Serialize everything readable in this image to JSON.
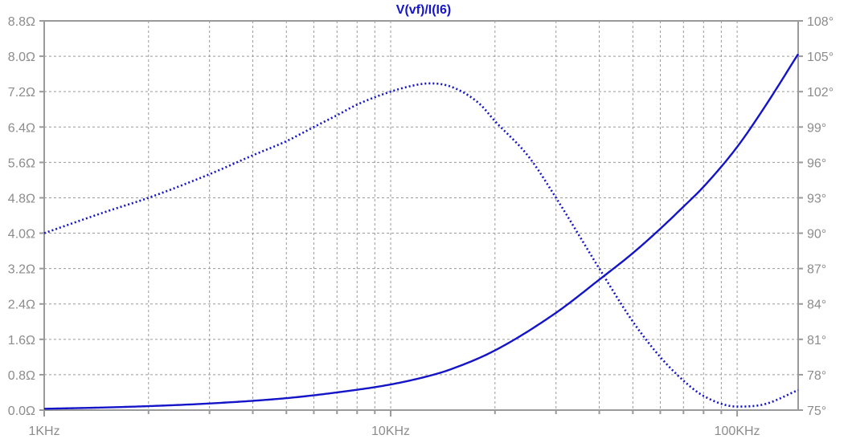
{
  "chart_data": {
    "type": "line",
    "title": "V(vf)/I(I6)",
    "x_scale": "log",
    "xlim": [
      1000,
      150000
    ],
    "x_ticks": [
      {
        "value": 1000,
        "label": "1KHz"
      },
      {
        "value": 10000,
        "label": "10KHz"
      },
      {
        "value": 100000,
        "label": "100KHz"
      }
    ],
    "y_left": {
      "ylim": [
        0,
        8.8
      ],
      "ticks": [
        "0.0Ω",
        "0.8Ω",
        "1.6Ω",
        "2.4Ω",
        "3.2Ω",
        "4.0Ω",
        "4.8Ω",
        "5.6Ω",
        "6.4Ω",
        "7.2Ω",
        "8.0Ω",
        "8.8Ω"
      ]
    },
    "y_right": {
      "ylim": [
        75,
        108
      ],
      "ticks": [
        "75°",
        "78°",
        "81°",
        "84°",
        "87°",
        "90°",
        "93°",
        "96°",
        "99°",
        "102°",
        "105°",
        "108°"
      ]
    },
    "grid": true,
    "colors": {
      "series": "#1414c8",
      "grid": "#9a9a9a",
      "axis": "#9a9a9a",
      "text": "#8c8c8c",
      "title": "#1414c8"
    },
    "series": [
      {
        "style": "solid",
        "axis": "left",
        "x": [
          1000,
          1500,
          2000,
          3000,
          5000,
          7000,
          10000,
          13000,
          15000,
          20000,
          30000,
          40000,
          50000,
          60000,
          70000,
          80000,
          100000,
          120000,
          150000
        ],
        "y": [
          0.03,
          0.06,
          0.09,
          0.15,
          0.27,
          0.4,
          0.58,
          0.78,
          0.93,
          1.35,
          2.2,
          2.95,
          3.55,
          4.1,
          4.6,
          5.05,
          5.95,
          6.85,
          8.05
        ]
      },
      {
        "style": "dotted",
        "axis": "right",
        "x": [
          1000,
          1500,
          2000,
          3000,
          4000,
          5000,
          6000,
          7000,
          8000,
          10000,
          12000,
          13000,
          15000,
          18000,
          20000,
          25000,
          30000,
          40000,
          50000,
          60000,
          70000,
          80000,
          100000,
          120000,
          150000
        ],
        "y": [
          90,
          91.8,
          93,
          95,
          96.6,
          97.8,
          99,
          100,
          100.9,
          102,
          102.6,
          102.7,
          102.4,
          101,
          99.5,
          96.5,
          93,
          87,
          82.5,
          79.5,
          77.5,
          76.2,
          75.3,
          75.5,
          76.7
        ]
      }
    ]
  }
}
